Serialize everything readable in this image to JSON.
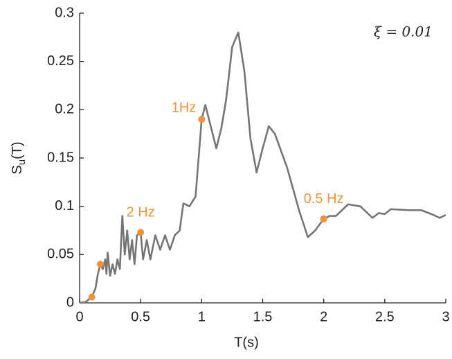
{
  "chart_data": {
    "type": "line",
    "ylabel_parts": [
      "S",
      "u",
      "(T)"
    ],
    "xlabel": "T(s)",
    "annotation": "ξ = 0.01",
    "x": [
      0,
      0.05,
      0.1,
      0.13,
      0.15,
      0.17,
      0.19,
      0.21,
      0.22,
      0.23,
      0.25,
      0.27,
      0.29,
      0.31,
      0.33,
      0.35,
      0.37,
      0.39,
      0.41,
      0.43,
      0.45,
      0.47,
      0.5,
      0.52,
      0.55,
      0.58,
      0.62,
      0.66,
      0.7,
      0.74,
      0.78,
      0.82,
      0.85,
      0.9,
      0.95,
      1.0,
      1.03,
      1.07,
      1.12,
      1.16,
      1.2,
      1.25,
      1.3,
      1.35,
      1.4,
      1.45,
      1.5,
      1.55,
      1.6,
      1.7,
      1.8,
      1.87,
      1.93,
      2.0,
      2.05,
      2.1,
      2.2,
      2.3,
      2.4,
      2.45,
      2.5,
      2.55,
      2.7,
      2.8,
      2.9,
      2.95,
      3.0
    ],
    "series": [
      {
        "color": "#757575",
        "values": [
          0,
          0.001,
          0.006,
          0.015,
          0.03,
          0.04,
          0.035,
          0.045,
          0.03,
          0.052,
          0.028,
          0.04,
          0.03,
          0.045,
          0.035,
          0.09,
          0.05,
          0.075,
          0.045,
          0.065,
          0.04,
          0.07,
          0.073,
          0.045,
          0.065,
          0.045,
          0.07,
          0.055,
          0.07,
          0.055,
          0.07,
          0.075,
          0.103,
          0.1,
          0.11,
          0.19,
          0.205,
          0.185,
          0.16,
          0.18,
          0.21,
          0.265,
          0.28,
          0.24,
          0.17,
          0.135,
          0.16,
          0.183,
          0.175,
          0.14,
          0.095,
          0.068,
          0.075,
          0.087,
          0.09,
          0.09,
          0.102,
          0.1,
          0.088,
          0.093,
          0.092,
          0.097,
          0.096,
          0.096,
          0.091,
          0.088,
          0.091
        ]
      }
    ],
    "markers": {
      "color": "#f0923a",
      "x": [
        0.1,
        0.17,
        0.5,
        1.0,
        2.0
      ],
      "values": [
        0.006,
        0.04,
        0.073,
        0.19,
        0.087
      ],
      "labels": [
        null,
        null,
        "2 Hz",
        "1Hz",
        "0.5 Hz"
      ]
    },
    "xlim": [
      0,
      3
    ],
    "ylim": [
      0,
      0.3
    ],
    "xticks": [
      0,
      0.5,
      1,
      1.5,
      2,
      2.5,
      3
    ],
    "yticks": [
      0,
      0.05,
      0.1,
      0.15,
      0.2,
      0.25,
      0.3
    ]
  }
}
